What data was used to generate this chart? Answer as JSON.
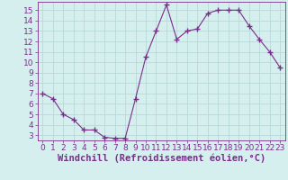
{
  "x": [
    0,
    1,
    2,
    3,
    4,
    5,
    6,
    7,
    8,
    9,
    10,
    11,
    12,
    13,
    14,
    15,
    16,
    17,
    18,
    19,
    20,
    21,
    22,
    23
  ],
  "y": [
    7.0,
    6.5,
    5.0,
    4.5,
    3.5,
    3.5,
    2.8,
    2.7,
    2.7,
    6.5,
    10.5,
    13.0,
    15.5,
    12.2,
    13.0,
    13.2,
    14.7,
    15.0,
    15.0,
    15.0,
    13.5,
    12.2,
    11.0,
    9.5
  ],
  "line_color": "#7B2D8B",
  "marker": "+",
  "marker_size": 4,
  "bg_color": "#d5efef",
  "grid_color": "#b8d8d8",
  "xlabel": "Windchill (Refroidissement éolien,°C)",
  "ylim": [
    2.5,
    15.8
  ],
  "xlim": [
    -0.5,
    23.5
  ],
  "yticks": [
    3,
    4,
    5,
    6,
    7,
    8,
    9,
    10,
    11,
    12,
    13,
    14,
    15
  ],
  "xticks": [
    0,
    1,
    2,
    3,
    4,
    5,
    6,
    7,
    8,
    9,
    10,
    11,
    12,
    13,
    14,
    15,
    16,
    17,
    18,
    19,
    20,
    21,
    22,
    23
  ],
  "tick_fontsize": 6.5,
  "xlabel_fontsize": 7.5
}
